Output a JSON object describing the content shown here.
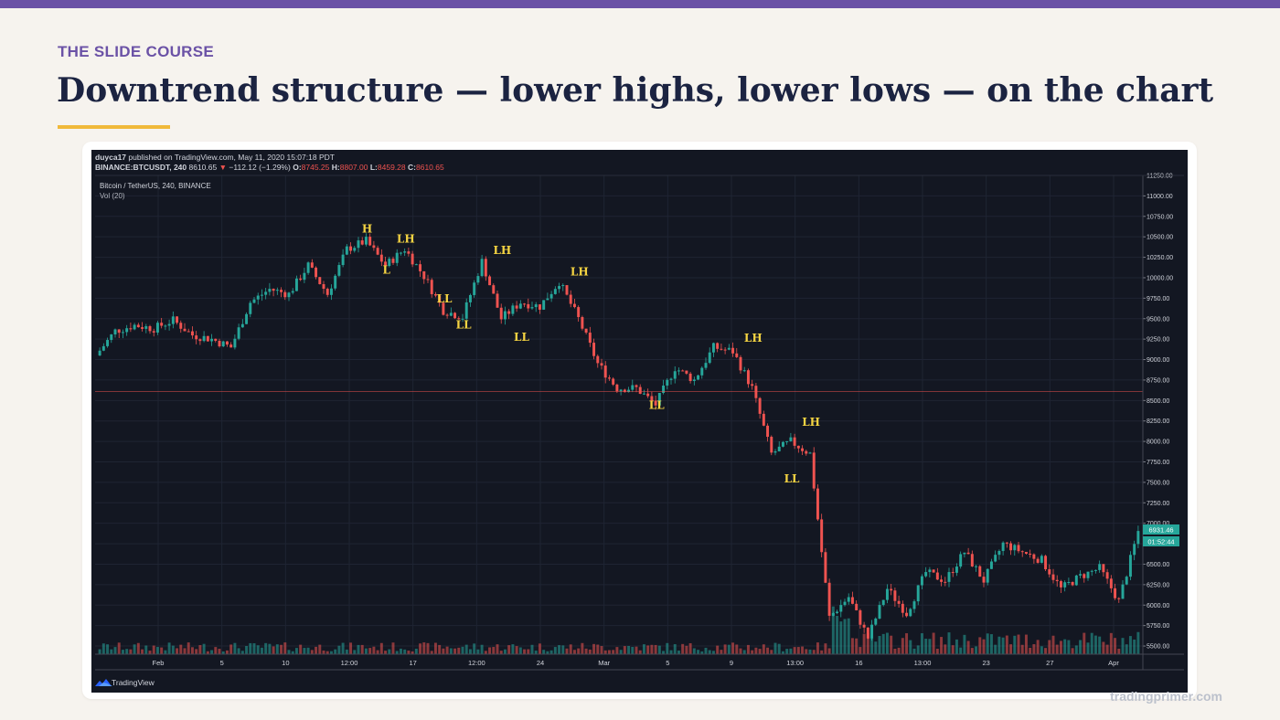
{
  "header": {
    "course_label": "THE SLIDE COURSE",
    "title": "Downtrend structure — lower highs, lower lows — on the chart"
  },
  "footer": {
    "brand": "tradingprimer.com"
  },
  "colors": {
    "up": "#26a69a",
    "down": "#ef5350",
    "label": "#f5d442",
    "accent": "#6b52a6",
    "title": "#1b2341",
    "underline": "#f0b93a"
  },
  "chart_info": {
    "published_by": "duyca17",
    "published_text": " published on TradingView.com, May 11, 2020 15:07:18 PDT",
    "symbol": "BINANCE:BTCUSDT, 240",
    "last": "8610.65",
    "change_arrow": "▼",
    "change": "−112.12 (−1.29%)",
    "o_label": "O:",
    "o_val": "8745.25",
    "h_label": "H:",
    "h_val": "8807.00",
    "l_label": "L:",
    "l_val": "8459.28",
    "c_label": "C:",
    "c_val": "8610.65",
    "legend_symbol": "Bitcoin / TetherUS, 240, BINANCE",
    "legend_volume": "Vol (20)",
    "price_tag": "6931.46",
    "countdown_tag": "01:52:44",
    "tv_brand": "TradingView"
  },
  "chart_data": {
    "type": "candlestick",
    "title": "Bitcoin / TetherUS, 240, BINANCE",
    "ylim": [
      5400,
      11250
    ],
    "y_ticks": [
      "11250.00",
      "11000.00",
      "10750.00",
      "10500.00",
      "10250.00",
      "10000.00",
      "9750.00",
      "9500.00",
      "9250.00",
      "9000.00",
      "8750.00",
      "8500.00",
      "8250.00",
      "8000.00",
      "7750.00",
      "7500.00",
      "7250.00",
      "7000.00",
      "6750.00",
      "6500.00",
      "6250.00",
      "6000.00",
      "5750.00",
      "5500.00"
    ],
    "x_ticks": [
      "Feb",
      "5",
      "10",
      "12:00",
      "17",
      "12:00",
      "24",
      "Mar",
      "5",
      "9",
      "13:00",
      "16",
      "13:00",
      "23",
      "27",
      "Apr"
    ],
    "horizontal_line": 8610.65,
    "grid": true,
    "series": [
      {
        "name": "close",
        "points": [
          [
            0,
            9050
          ],
          [
            1,
            9350
          ],
          [
            2,
            9420
          ],
          [
            3,
            9380
          ],
          [
            4,
            9480
          ],
          [
            5,
            9300
          ],
          [
            6,
            9250
          ],
          [
            7,
            9150
          ],
          [
            8,
            9700
          ],
          [
            9,
            9860
          ],
          [
            10,
            9800
          ],
          [
            11,
            10150
          ],
          [
            12,
            9800
          ],
          [
            13,
            10350
          ],
          [
            14,
            10450
          ],
          [
            15,
            10150
          ],
          [
            16,
            10350
          ],
          [
            17,
            10020
          ],
          [
            18,
            9600
          ],
          [
            19,
            9520
          ],
          [
            20,
            10200
          ],
          [
            21,
            9500
          ],
          [
            22,
            9700
          ],
          [
            23,
            9650
          ],
          [
            24,
            9950
          ],
          [
            25,
            9500
          ],
          [
            26,
            8950
          ],
          [
            27,
            8650
          ],
          [
            28,
            8650
          ],
          [
            29,
            8450
          ],
          [
            30,
            8900
          ],
          [
            31,
            8750
          ],
          [
            32,
            9150
          ],
          [
            33,
            9100
          ],
          [
            34,
            8650
          ],
          [
            35,
            7850
          ],
          [
            36,
            8000
          ],
          [
            37,
            7850
          ],
          [
            38,
            5850
          ],
          [
            39,
            6100
          ],
          [
            40,
            5600
          ],
          [
            41,
            6200
          ],
          [
            42,
            5900
          ],
          [
            43,
            6400
          ],
          [
            44,
            6300
          ],
          [
            45,
            6650
          ],
          [
            46,
            6300
          ],
          [
            47,
            6750
          ],
          [
            48,
            6650
          ],
          [
            49,
            6550
          ],
          [
            50,
            6200
          ],
          [
            51,
            6350
          ],
          [
            52,
            6450
          ],
          [
            53,
            6050
          ],
          [
            54,
            6900
          ]
        ]
      }
    ],
    "annotations": [
      {
        "text": "H",
        "x": 14,
        "y": 10550
      },
      {
        "text": "L",
        "x": 15,
        "y": 10050
      },
      {
        "text": "LH",
        "x": 16,
        "y": 10430
      },
      {
        "text": "LL",
        "x": 18,
        "y": 9700
      },
      {
        "text": "LL",
        "x": 19,
        "y": 9380
      },
      {
        "text": "LH",
        "x": 21,
        "y": 10290
      },
      {
        "text": "LL",
        "x": 22,
        "y": 9230
      },
      {
        "text": "LH",
        "x": 25,
        "y": 10030
      },
      {
        "text": "LL",
        "x": 29,
        "y": 8400
      },
      {
        "text": "LH",
        "x": 34,
        "y": 9220
      },
      {
        "text": "LH",
        "x": 37,
        "y": 8190
      },
      {
        "text": "LL",
        "x": 36,
        "y": 7500
      }
    ]
  }
}
